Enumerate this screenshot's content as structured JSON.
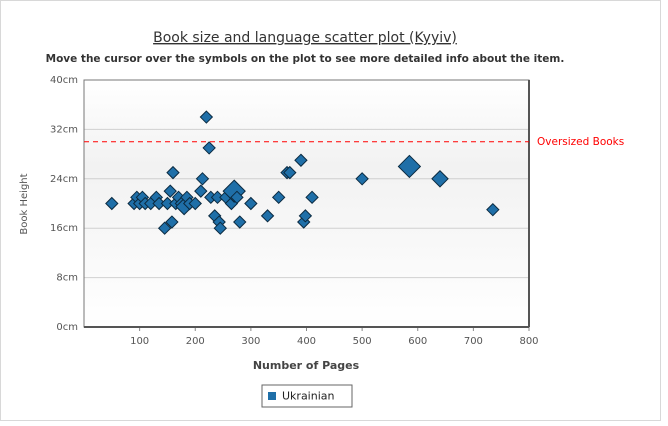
{
  "chart_data": {
    "type": "scatter",
    "title": "Book size and language scatter plot (Kyyiv)",
    "subtitle": "Move the cursor over the symbols on the plot to see more detailed info about the item.",
    "x_label": "Number of Pages",
    "y_label": "Book Height",
    "xlim": [
      0,
      800
    ],
    "xticks": [
      100,
      200,
      300,
      400,
      500,
      600,
      700,
      800
    ],
    "ylim": [
      0,
      40
    ],
    "yticks": [
      {
        "value": 0,
        "label": "0cm"
      },
      {
        "value": 8,
        "label": "8cm"
      },
      {
        "value": 16,
        "label": "16cm"
      },
      {
        "value": 24,
        "label": "24cm"
      },
      {
        "value": 32,
        "label": "32cm"
      },
      {
        "value": 40,
        "label": "40cm"
      }
    ],
    "grid": true,
    "threshold": {
      "value": 30,
      "label": "Oversized Books",
      "color": "#ff0000"
    },
    "legend": "bottom",
    "series": [
      {
        "name": "Ukrainian",
        "color": "#1f6fa8",
        "x": [
          50,
          90,
          95,
          100,
          105,
          110,
          120,
          130,
          135,
          145,
          150,
          155,
          158,
          160,
          165,
          170,
          175,
          180,
          185,
          190,
          200,
          210,
          213,
          220,
          225,
          228,
          235,
          240,
          243,
          245,
          255,
          265,
          270,
          275,
          280,
          300,
          330,
          350,
          365,
          370,
          390,
          395,
          398,
          410,
          500,
          585,
          640,
          735
        ],
        "values": [
          20,
          20,
          21,
          20,
          21,
          20,
          20,
          21,
          20,
          16,
          20,
          22,
          17,
          25,
          20,
          21,
          20,
          19.5,
          21,
          20,
          20,
          22,
          24,
          34,
          29,
          21,
          18,
          21,
          17,
          16,
          21,
          20,
          22,
          21,
          17,
          20,
          18,
          21,
          25,
          25,
          27,
          17,
          18,
          21,
          24,
          26,
          24,
          19
        ],
        "sizes": [
          1,
          1,
          1,
          1,
          1,
          1,
          1,
          1,
          1,
          1,
          1,
          1,
          1,
          1,
          1,
          1,
          1,
          2,
          1,
          1,
          1,
          1,
          1,
          1,
          1,
          1,
          1,
          1,
          1,
          1,
          1,
          1,
          4,
          1,
          1,
          1,
          1,
          1,
          1,
          1,
          1,
          1,
          1,
          1,
          1,
          4,
          2,
          1
        ]
      }
    ]
  }
}
